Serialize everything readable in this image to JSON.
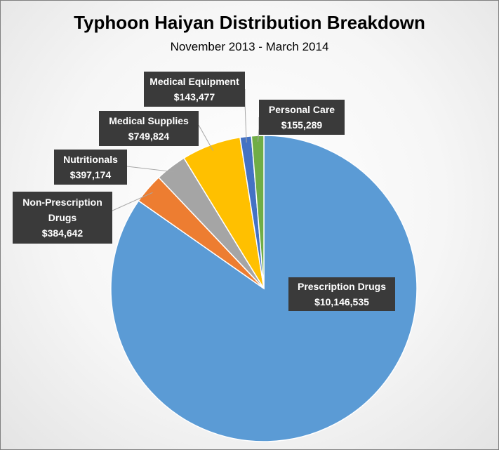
{
  "chart_data": {
    "type": "pie",
    "title": "Typhoon Haiyan Distribution Breakdown",
    "subtitle": "November 2013 - March 2014",
    "slices": [
      {
        "label": "Prescription Drugs",
        "value": 10146535,
        "value_label": "$10,146,535",
        "color": "#5b9bd5"
      },
      {
        "label": "Non-Prescription Drugs",
        "value": 384642,
        "value_label": "$384,642",
        "color": "#ed7d31"
      },
      {
        "label": "Nutritionals",
        "value": 397174,
        "value_label": "$397,174",
        "color": "#a5a5a5"
      },
      {
        "label": "Medical Supplies",
        "value": 749824,
        "value_label": "$749,824",
        "color": "#ffc000"
      },
      {
        "label": "Medical Equipment",
        "value": 143477,
        "value_label": "$143,477",
        "color": "#4472c4"
      },
      {
        "label": "Personal Care",
        "value": 155289,
        "value_label": "$155,289",
        "color": "#70ad47"
      }
    ]
  }
}
